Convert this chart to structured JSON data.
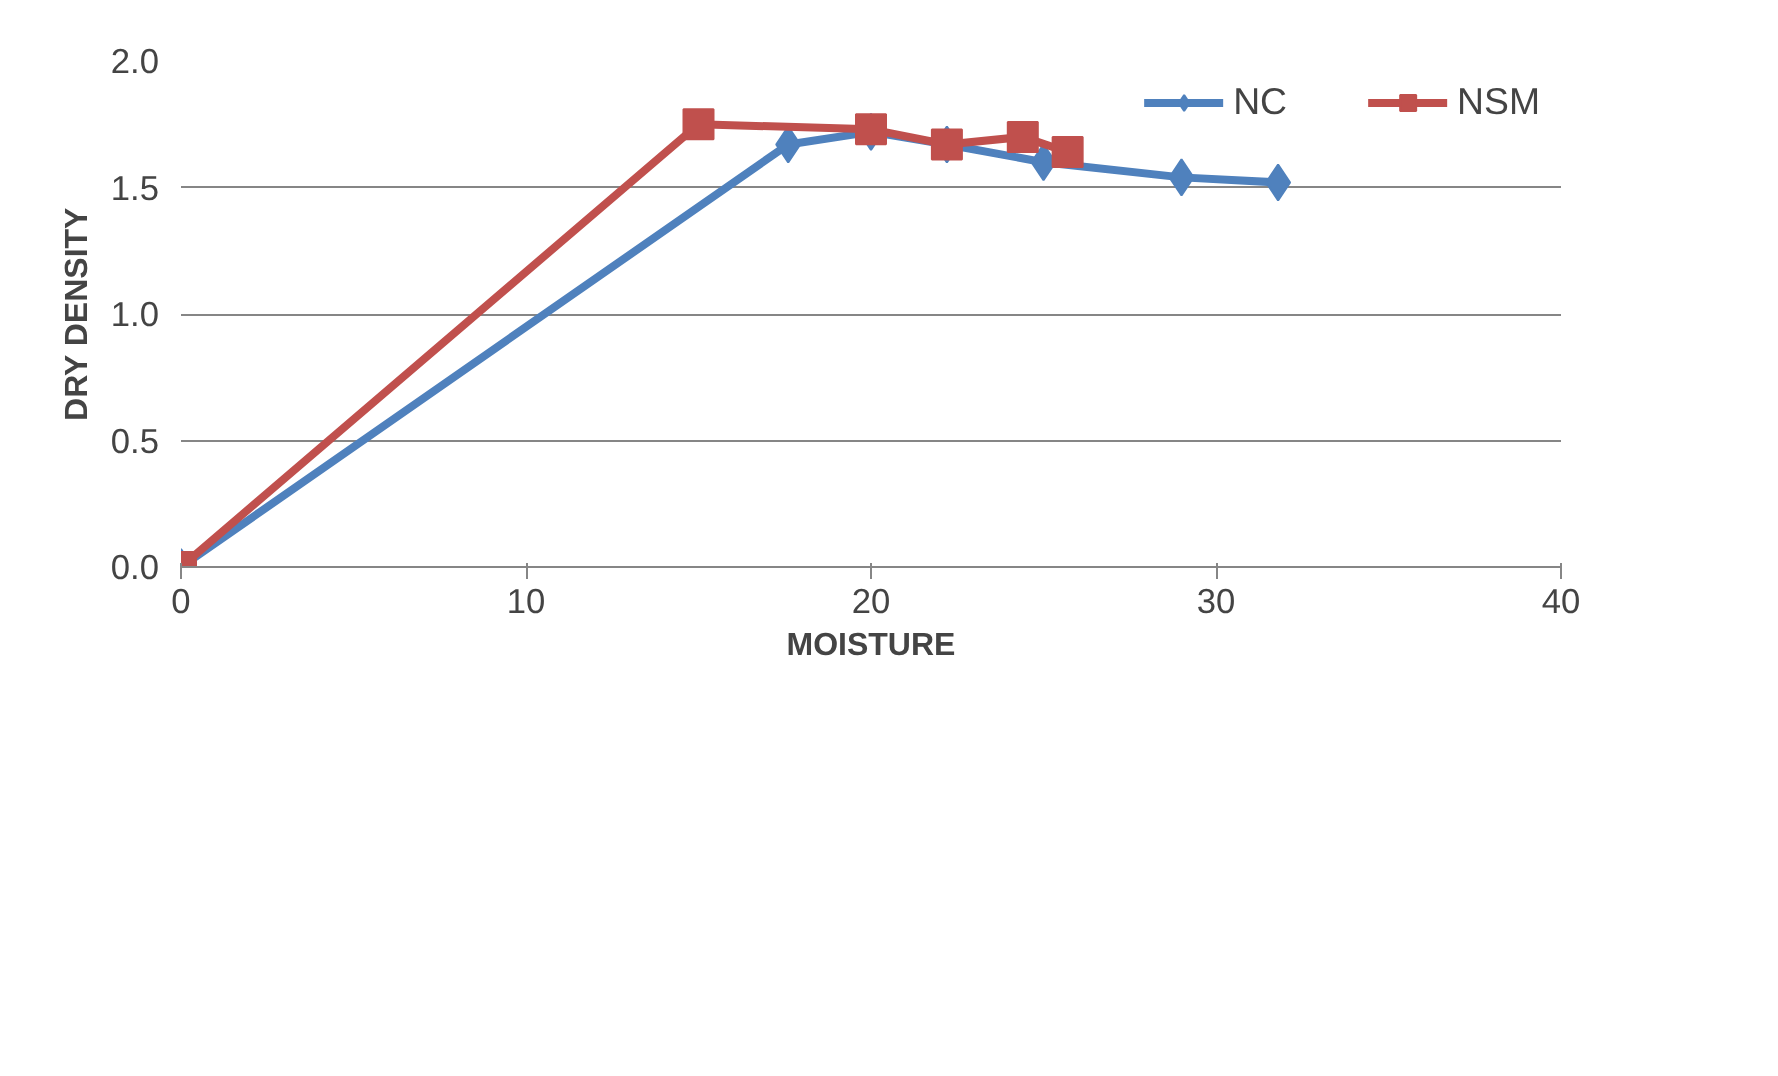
{
  "chart_data": {
    "type": "line",
    "xlabel": "MOISTURE",
    "ylabel": "DRY DENSITY",
    "xlim": [
      0,
      40
    ],
    "xticks": [
      0,
      10,
      20,
      30,
      40
    ],
    "ylim": [
      0,
      2.0
    ],
    "yticks": [
      {
        "value": 0,
        "label": "0.0"
      },
      {
        "value": 0.5,
        "label": "0.5"
      },
      {
        "value": 1.0,
        "label": "1.0"
      },
      {
        "value": 1.5,
        "label": "1.5"
      },
      {
        "value": 2.0,
        "label": "2.0"
      }
    ],
    "grid": "y",
    "legend": "top right",
    "line_style": "solid",
    "series": [
      {
        "name": "NC",
        "color": "#4f81bd",
        "marker": "diamond",
        "x": [
          0,
          17.6,
          20,
          22.2,
          25,
          29,
          31.8
        ],
        "values": [
          0,
          1.67,
          1.72,
          1.67,
          1.6,
          1.54,
          1.52
        ]
      },
      {
        "name": "NSM",
        "color": "#c0504d",
        "marker": "square",
        "x": [
          0,
          15,
          20,
          22.2,
          24.4,
          25.7
        ],
        "values": [
          0,
          1.75,
          1.73,
          1.67,
          1.7,
          1.64
        ]
      }
    ]
  }
}
